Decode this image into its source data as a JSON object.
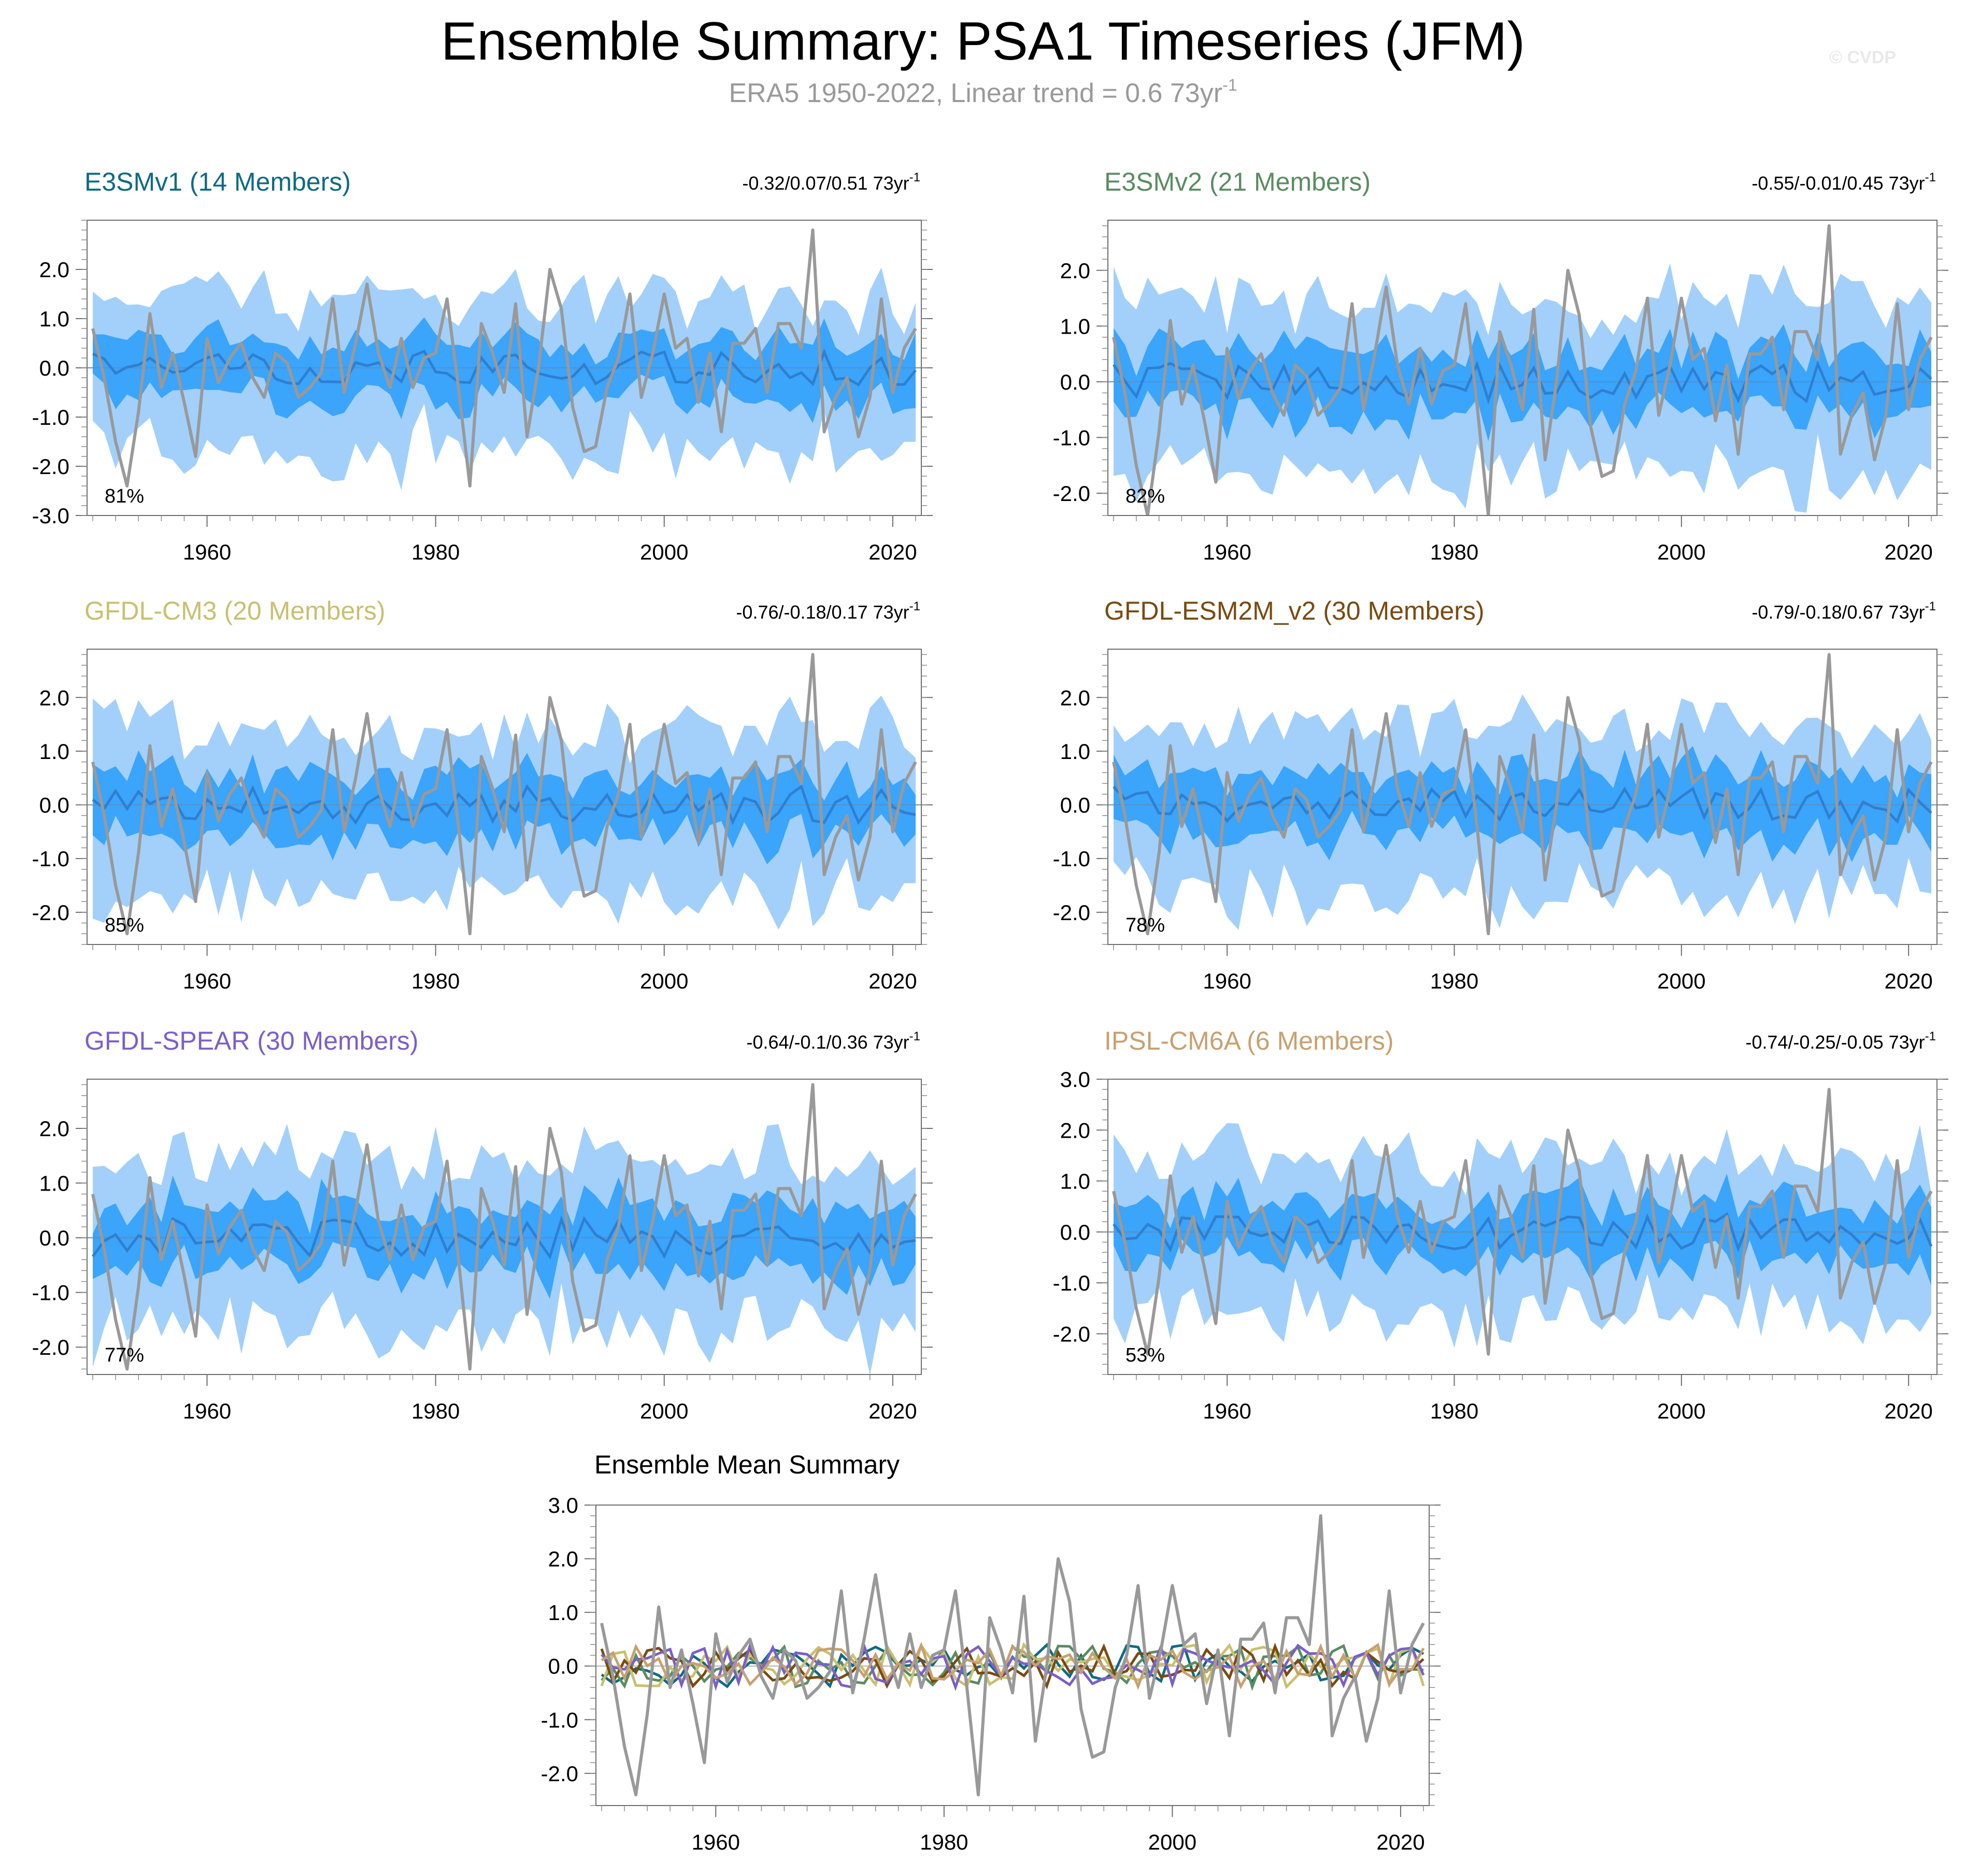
{
  "figure": {
    "title": "Ensemble Summary: PSA1 Timeseries (JFM)",
    "subtitle_text": "ERA5 1950-2022, Linear trend = 0.6 73yr",
    "subtitle_exp": "-1",
    "copyright": "© CVDP"
  },
  "chart_data": [
    {
      "type": "area",
      "title": "E3SMv1 (14 Members)",
      "title_color": "#0e6b82",
      "trend_text": "-0.32/0.07/0.51 73yr",
      "trend_exp": "-1",
      "percent_label": "81%",
      "ylim": [
        -3.0,
        3.0
      ],
      "yticks": [
        "2.0",
        "1.0",
        "0.0",
        "-1.0",
        "-2.0",
        "-3.0"
      ],
      "ytick_values": [
        2.0,
        1.0,
        0.0,
        -1.0,
        -2.0,
        -3.0
      ],
      "xticks": [
        "1960",
        "1980",
        "2000",
        "2020"
      ],
      "xtick_values": [
        1960,
        1980,
        2000,
        2020
      ],
      "xlim": [
        1949.5,
        2022.5
      ],
      "band_seed": 11
    },
    {
      "type": "area",
      "title": "E3SMv2 (21 Members)",
      "title_color": "#5b8c62",
      "trend_text": "-0.55/-0.01/0.45 73yr",
      "trend_exp": "-1",
      "percent_label": "82%",
      "ylim": [
        -2.4,
        2.9
      ],
      "yticks": [
        "2.0",
        "1.0",
        "0.0",
        "-1.0",
        "-2.0"
      ],
      "ytick_values": [
        2.0,
        1.0,
        0.0,
        -1.0,
        -2.0
      ],
      "xticks": [
        "1960",
        "1980",
        "2000",
        "2020"
      ],
      "xtick_values": [
        1960,
        1980,
        2000,
        2020
      ],
      "xlim": [
        1949.5,
        2022.5
      ],
      "band_seed": 23
    },
    {
      "type": "area",
      "title": "GFDL-CM3 (20 Members)",
      "title_color": "#c9c070",
      "trend_text": "-0.76/-0.18/0.17 73yr",
      "trend_exp": "-1",
      "percent_label": "85%",
      "ylim": [
        -2.6,
        2.9
      ],
      "yticks": [
        "2.0",
        "1.0",
        "0.0",
        "-1.0",
        "-2.0"
      ],
      "ytick_values": [
        2.0,
        1.0,
        0.0,
        -1.0,
        -2.0
      ],
      "xticks": [
        "1960",
        "1980",
        "2000",
        "2020"
      ],
      "xtick_values": [
        1960,
        1980,
        2000,
        2020
      ],
      "xlim": [
        1949.5,
        2022.5
      ],
      "band_seed": 37
    },
    {
      "type": "area",
      "title": "GFDL-ESM2M_v2 (30 Members)",
      "title_color": "#7a4a10",
      "trend_text": "-0.79/-0.18/0.67 73yr",
      "trend_exp": "-1",
      "percent_label": "78%",
      "ylim": [
        -2.6,
        2.9
      ],
      "yticks": [
        "2.0",
        "1.0",
        "0.0",
        "-1.0",
        "-2.0"
      ],
      "ytick_values": [
        2.0,
        1.0,
        0.0,
        -1.0,
        -2.0
      ],
      "xticks": [
        "1960",
        "1980",
        "2000",
        "2020"
      ],
      "xtick_values": [
        1960,
        1980,
        2000,
        2020
      ],
      "xlim": [
        1949.5,
        2022.5
      ],
      "band_seed": 41
    },
    {
      "type": "area",
      "title": "GFDL-SPEAR (30 Members)",
      "title_color": "#7b5fc9",
      "trend_text": "-0.64/-0.1/0.36 73yr",
      "trend_exp": "-1",
      "percent_label": "77%",
      "ylim": [
        -2.5,
        2.9
      ],
      "yticks": [
        "2.0",
        "1.0",
        "0.0",
        "-1.0",
        "-2.0"
      ],
      "ytick_values": [
        2.0,
        1.0,
        0.0,
        -1.0,
        -2.0
      ],
      "xticks": [
        "1960",
        "1980",
        "2000",
        "2020"
      ],
      "xtick_values": [
        1960,
        1980,
        2000,
        2020
      ],
      "xlim": [
        1949.5,
        2022.5
      ],
      "band_seed": 53
    },
    {
      "type": "area",
      "title": "IPSL-CM6A (6 Members)",
      "title_color": "#c8a070",
      "trend_text": "-0.74/-0.25/-0.05 73yr",
      "trend_exp": "-1",
      "percent_label": "53%",
      "ylim": [
        -2.8,
        3.0
      ],
      "yticks": [
        "3.0",
        "2.0",
        "1.0",
        "0.0",
        "-1.0",
        "-2.0"
      ],
      "ytick_values": [
        3.0,
        2.0,
        1.0,
        0.0,
        -1.0,
        -2.0
      ],
      "xticks": [
        "1960",
        "1980",
        "2000",
        "2020"
      ],
      "xtick_values": [
        1960,
        1980,
        2000,
        2020
      ],
      "xlim": [
        1949.5,
        2022.5
      ],
      "band_seed": 67
    },
    {
      "type": "line",
      "title": "Ensemble Mean Summary",
      "title_color": "#000000",
      "ylim": [
        -2.6,
        3.0
      ],
      "yticks": [
        "3.0",
        "2.0",
        "1.0",
        "0.0",
        "-1.0",
        "-2.0"
      ],
      "ytick_values": [
        3.0,
        2.0,
        1.0,
        0.0,
        -1.0,
        -2.0
      ],
      "xticks": [
        "1960",
        "1980",
        "2000",
        "2020"
      ],
      "xtick_values": [
        1960,
        1980,
        2000,
        2020
      ],
      "xlim": [
        1949.5,
        2022.5
      ],
      "series_colors": [
        "#0e6b82",
        "#5b8c62",
        "#c9c070",
        "#7a4a10",
        "#7b5fc9",
        "#c8a070"
      ]
    }
  ],
  "observations": {
    "name": "ERA5",
    "color": "#999999",
    "years_start": 1950,
    "values": [
      0.8,
      -0.2,
      -1.5,
      -2.4,
      -0.9,
      1.1,
      -0.4,
      0.3,
      -0.7,
      -1.8,
      0.6,
      -0.3,
      0.2,
      0.5,
      -0.2,
      -0.6,
      0.3,
      0.1,
      -0.6,
      -0.4,
      -0.1,
      1.4,
      -0.5,
      0.5,
      1.7,
      0.3,
      -0.4,
      0.6,
      -0.4,
      0.2,
      0.3,
      1.4,
      -0.4,
      -2.4,
      0.9,
      0.3,
      -0.5,
      1.3,
      -1.4,
      0.0,
      2.0,
      1.2,
      -0.8,
      -1.7,
      -1.6,
      -0.4,
      0.2,
      1.5,
      -0.6,
      0.3,
      1.5,
      0.4,
      0.6,
      -0.7,
      0.3,
      -1.3,
      0.5,
      0.5,
      0.8,
      -0.5,
      0.9,
      0.9,
      0.4,
      2.8,
      -1.3,
      -0.6,
      -0.2,
      -1.4,
      -0.6,
      1.4,
      -0.5,
      0.4,
      0.8
    ]
  }
}
